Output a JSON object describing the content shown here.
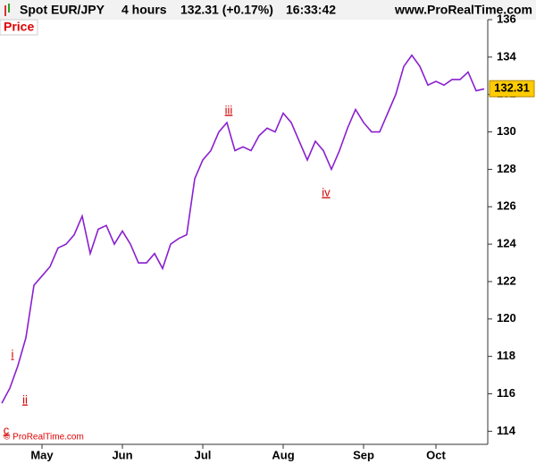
{
  "chart_data": {
    "type": "line",
    "symbol": "Spot EUR/JPY",
    "timeframe": "4 hours",
    "quote": "132.31 (+0.17%)",
    "time": "16:33:42",
    "site": "www.ProRealTime.com",
    "panel_label": "Price",
    "copyright": "© ProRealTime.com",
    "last_price": {
      "value": 132.31,
      "label": "132.31"
    },
    "categories": [
      null,
      null,
      null,
      null,
      null,
      "May",
      null,
      null,
      null,
      null,
      null,
      null,
      null,
      null,
      null,
      "Jun",
      null,
      null,
      null,
      null,
      null,
      null,
      null,
      null,
      null,
      "Jul",
      null,
      null,
      null,
      null,
      null,
      null,
      null,
      null,
      null,
      "Aug",
      null,
      null,
      null,
      null,
      null,
      null,
      null,
      null,
      null,
      "Sep",
      null,
      null,
      null,
      null,
      null,
      null,
      null,
      null,
      "Oct",
      null,
      null,
      null,
      null,
      null,
      null
    ],
    "series": [
      {
        "name": "Price",
        "color": "#8a1fd0",
        "values": [
          115.5,
          116.3,
          117.5,
          119,
          121.8,
          122.3,
          122.8,
          123.8,
          124,
          124.5,
          125.5,
          123.5,
          124.8,
          125,
          124,
          124.7,
          124,
          123,
          123,
          123.5,
          122.7,
          124,
          124.3,
          124.5,
          127.5,
          128.5,
          129,
          130,
          130.5,
          129,
          129.2,
          129,
          129.8,
          130.2,
          130,
          131,
          130.5,
          129.5,
          128.5,
          129.5,
          129,
          128,
          129,
          130.2,
          131.2,
          130.5,
          130,
          130,
          131,
          132,
          133.5,
          134.1,
          133.5,
          132.5,
          132.7,
          132.5,
          132.8,
          132.8,
          133.2,
          132.2,
          132.3
        ]
      }
    ],
    "annotations": [
      "c",
      "i",
      "ii",
      "iii",
      "iv"
    ],
    "ylim": [
      113.3,
      136.0
    ],
    "yticks": [
      114,
      116,
      118,
      120,
      122,
      124,
      126,
      128,
      130,
      132,
      134,
      136
    ],
    "grid": false,
    "axis_side": "right"
  }
}
